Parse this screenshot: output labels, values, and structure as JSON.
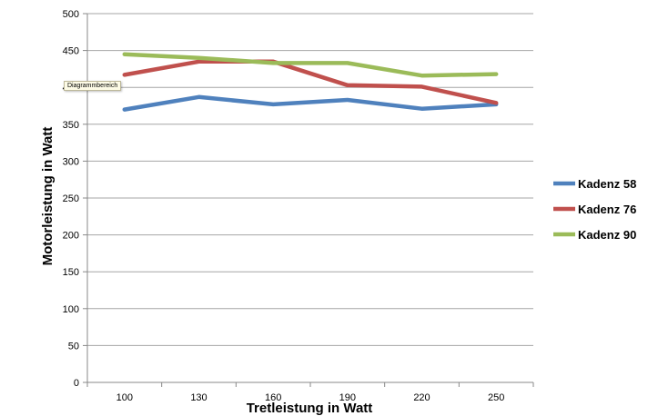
{
  "tooltip": "Diagrammbereich",
  "chart_data": {
    "type": "line",
    "xlabel": "Tretleistung in Watt",
    "ylabel": "Motorleistung in Watt",
    "categories": [
      "100",
      "130",
      "160",
      "190",
      "220",
      "250"
    ],
    "ylim": [
      0,
      500
    ],
    "yticks": [
      0,
      50,
      100,
      150,
      200,
      250,
      300,
      350,
      400,
      450,
      500
    ],
    "grid": "horizontal",
    "legend": "right",
    "series": [
      {
        "name": "Kadenz 58",
        "color": "#4f81bd",
        "values": [
          370,
          387,
          377,
          383,
          371,
          377
        ]
      },
      {
        "name": "Kadenz 76",
        "color": "#c0504d",
        "values": [
          417,
          435,
          435,
          403,
          401,
          379
        ]
      },
      {
        "name": "Kadenz 90",
        "color": "#9bbb59",
        "values": [
          445,
          440,
          433,
          433,
          416,
          418
        ]
      }
    ]
  }
}
